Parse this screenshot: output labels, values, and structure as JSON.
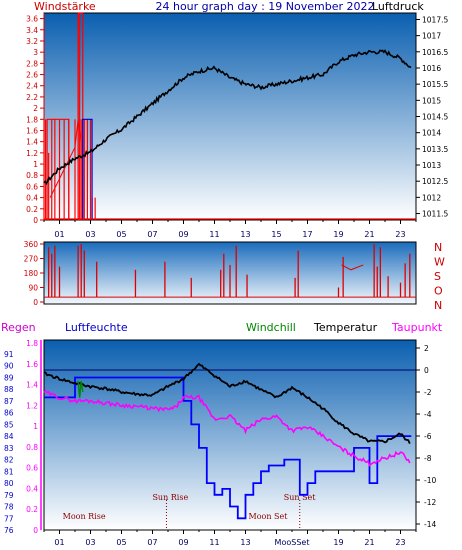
{
  "panel1": {
    "title_left": "Windstärke",
    "title_center": "24 hour graph day : 19 November 2022",
    "title_right": "Luftdruck",
    "left_ticks": [
      "0",
      "0.2",
      "0.4",
      "0.6",
      "0.8",
      "1",
      "1.2",
      "1.4",
      "1.6",
      "1.8",
      "2",
      "2.2",
      "2.4",
      "2.6",
      "2.8",
      "3",
      "3.2",
      "3.4",
      "3.6"
    ],
    "right_ticks": [
      "1011.5",
      "1012",
      "1012.5",
      "1013",
      "1013.5",
      "1014",
      "1014.5",
      "1015",
      "1015.5",
      "1016",
      "1016.5",
      "1017",
      "1017.5"
    ],
    "x_ticks": [
      "01",
      "03",
      "05",
      "07",
      "09",
      "11",
      "13",
      "15",
      "17",
      "19",
      "21",
      "23"
    ]
  },
  "panel2": {
    "left_ticks": [
      "0",
      "90",
      "180",
      "270",
      "360"
    ],
    "right_labels": [
      "N",
      "W",
      "S",
      "O",
      "N"
    ]
  },
  "panel3": {
    "legend": {
      "regen": "Regen",
      "luftfeuchte": "Luftfeuchte",
      "windchill": "Windchill",
      "temperatur": "Temperatur",
      "taupunkt": "Taupunkt"
    },
    "regen_ticks": [
      "0",
      "0.2",
      "0.4",
      "0.6",
      "0.8",
      "1",
      "1.2",
      "1.4",
      "1.6",
      "1.8"
    ],
    "humidity_ticks": [
      "76",
      "77",
      "78",
      "79",
      "80",
      "81",
      "82",
      "83",
      "84",
      "85",
      "86",
      "87",
      "88",
      "89",
      "90",
      "91"
    ],
    "temp_ticks": [
      "-14",
      "-12",
      "-10",
      "-8",
      "-6",
      "-4",
      "-2",
      "0",
      "2"
    ],
    "annotations": {
      "moon_rise": "Moon Rise",
      "sun_rise": "Sun Rise",
      "sun_set": "Sun Set",
      "moon_set": "Moon Set"
    },
    "x_ticks": [
      "01",
      "03",
      "05",
      "07",
      "09",
      "11",
      "13",
      "15",
      "17",
      "19",
      "21",
      "23"
    ],
    "x_tick_overlap": "MooSSet"
  },
  "colors": {
    "wind": "#ff0000",
    "pressure": "#000000",
    "direction": "#dd0000",
    "humidity": "#0000ff",
    "temperature": "#000000",
    "dewpoint": "#ff00ff",
    "windchill": "#008800",
    "left_axis": "#cc0000"
  },
  "chart_data": [
    {
      "type": "line",
      "title": "24 hour graph day : 19 November 2022",
      "xlabel": "",
      "x_unit": "hour",
      "ylabel_left": "Windstärke",
      "ylim_left": [
        0,
        3.7
      ],
      "ylabel_right": "Luftdruck",
      "ylim_right": [
        1011.3,
        1017.7
      ],
      "grid": false,
      "series": [
        {
          "name": "Windstärke",
          "axis": "left",
          "style": "bars",
          "x": [
            0.0,
            0.1,
            0.3,
            0.5,
            0.7,
            1.0,
            1.3,
            1.6,
            2.0,
            2.2,
            2.3,
            2.4,
            2.5,
            2.6,
            2.8,
            3.0,
            3.1,
            3.3
          ],
          "y": [
            1.8,
            1.8,
            1.2,
            1.8,
            1.8,
            1.8,
            1.8,
            1.8,
            1.8,
            3.7,
            3.7,
            1.8,
            1.5,
            1.8,
            1.8,
            1.8,
            0.4,
            0.4
          ]
        },
        {
          "name": "Luftdruck",
          "axis": "right",
          "x": [
            0,
            1,
            2,
            3,
            4,
            5,
            6,
            7,
            8,
            9,
            10,
            11,
            12,
            13,
            14,
            15,
            16,
            17,
            18,
            19,
            20,
            21,
            22,
            23,
            23.7
          ],
          "y": [
            1012.4,
            1012.9,
            1013.2,
            1013.4,
            1013.8,
            1014.1,
            1014.5,
            1014.9,
            1015.3,
            1015.7,
            1015.9,
            1016.0,
            1015.7,
            1015.5,
            1015.4,
            1015.5,
            1015.6,
            1015.7,
            1015.8,
            1016.2,
            1016.4,
            1016.5,
            1016.5,
            1016.3,
            1016.0
          ]
        }
      ]
    },
    {
      "type": "line",
      "title": "",
      "x_unit": "hour",
      "ylabel_left": "",
      "ylim": [
        0,
        360
      ],
      "ylabel_right": "",
      "right_labels": [
        "N",
        "W",
        "S",
        "O",
        "N"
      ],
      "series": [
        {
          "name": "",
          "style": "spikes",
          "x": [
            0.3,
            0.5,
            0.7,
            1.0,
            2.2,
            2.4,
            2.6,
            3.4,
            5.9,
            7.8,
            9.5,
            11.4,
            11.6,
            12.0,
            12.4,
            13.1,
            16.2,
            16.4,
            19.0,
            19.3,
            21.3,
            21.5,
            21.7,
            22.2,
            23.0,
            23.3,
            23.6
          ],
          "y": [
            340,
            300,
            350,
            220,
            350,
            360,
            320,
            250,
            200,
            250,
            150,
            200,
            300,
            230,
            350,
            170,
            150,
            320,
            90,
            280,
            360,
            220,
            340,
            160,
            120,
            240,
            300
          ],
          "baseline": 30
        }
      ]
    },
    {
      "type": "line",
      "title": "",
      "x_unit": "hour",
      "ylabel_left": "Regen",
      "ylim_regen": [
        0,
        1.8
      ],
      "ylabel_humidity": "Luftfeuchte",
      "ylim_humidity": [
        76,
        91
      ],
      "ylabel_right": "Temperatur",
      "ylim_temp": [
        -15,
        3
      ],
      "annotations": [
        {
          "label": "Moon Rise",
          "x": 0.3
        },
        {
          "label": "Sun Rise",
          "x": 7.9
        },
        {
          "label": "Sun Set",
          "x": 16.5
        },
        {
          "label": "Moon Set",
          "x": 15.0
        }
      ],
      "series": [
        {
          "name": "Luftfeuchte",
          "axis": "humidity",
          "x": [
            0,
            1.5,
            2.0,
            3.0,
            5.0,
            7.0,
            8.7,
            9.0,
            9.5,
            10.0,
            10.5,
            11.0,
            11.5,
            12.0,
            12.5,
            13.0,
            13.5,
            14.0,
            14.5,
            15.0,
            15.5,
            16.0,
            16.5,
            17.0,
            17.5,
            18.0,
            19.0,
            20.0,
            20.5,
            21.0,
            21.5,
            22.0,
            23.0,
            23.7
          ],
          "y": [
            87.3,
            87.3,
            89.0,
            89.0,
            89.0,
            89.0,
            89.0,
            87.0,
            85.0,
            83.0,
            80.0,
            79.0,
            79.5,
            78.0,
            77.0,
            79.0,
            80.0,
            81.0,
            81.5,
            81.5,
            82.0,
            82.0,
            79.0,
            80.0,
            81.0,
            81.0,
            81.0,
            83.0,
            83.0,
            80.0,
            84.0,
            84.0,
            84.0,
            84.0
          ]
        },
        {
          "name": "Temperatur",
          "axis": "temp",
          "x": [
            0,
            1,
            2,
            3,
            4,
            5,
            6,
            7,
            8,
            9,
            10,
            11,
            12,
            13,
            14,
            15,
            16,
            17,
            18,
            19,
            20,
            21,
            22,
            23,
            23.7
          ],
          "y": [
            -0.3,
            -0.8,
            -1.2,
            -1.5,
            -1.7,
            -2.0,
            -2.2,
            -2.3,
            -1.5,
            -0.8,
            0.5,
            -0.5,
            -1.5,
            -1.0,
            -1.8,
            -2.5,
            -1.6,
            -2.5,
            -3.5,
            -4.8,
            -5.8,
            -6.5,
            -6.5,
            -5.8,
            -6.8
          ]
        },
        {
          "name": "Taupunkt",
          "axis": "temp",
          "x": [
            0,
            1,
            2,
            3,
            4,
            5,
            6,
            7,
            8,
            8.5,
            9,
            10,
            11,
            12,
            13,
            14,
            15,
            16,
            17,
            18,
            19,
            20,
            21,
            22,
            23,
            23.7
          ],
          "y": [
            -2.0,
            -2.5,
            -2.8,
            -2.8,
            -3.0,
            -3.2,
            -3.3,
            -3.5,
            -3.6,
            -3.4,
            -2.5,
            -2.5,
            -4.5,
            -4.2,
            -5.5,
            -4.5,
            -4.2,
            -5.5,
            -5.2,
            -6.0,
            -7.0,
            -7.8,
            -8.5,
            -8.0,
            -7.5,
            -8.5
          ]
        },
        {
          "name": "Windchill",
          "axis": "temp",
          "x": [
            2.2,
            2.3,
            2.4,
            2.5
          ],
          "y": [
            -1.0,
            -2.5,
            -1.0,
            -2.0
          ]
        }
      ]
    }
  ]
}
